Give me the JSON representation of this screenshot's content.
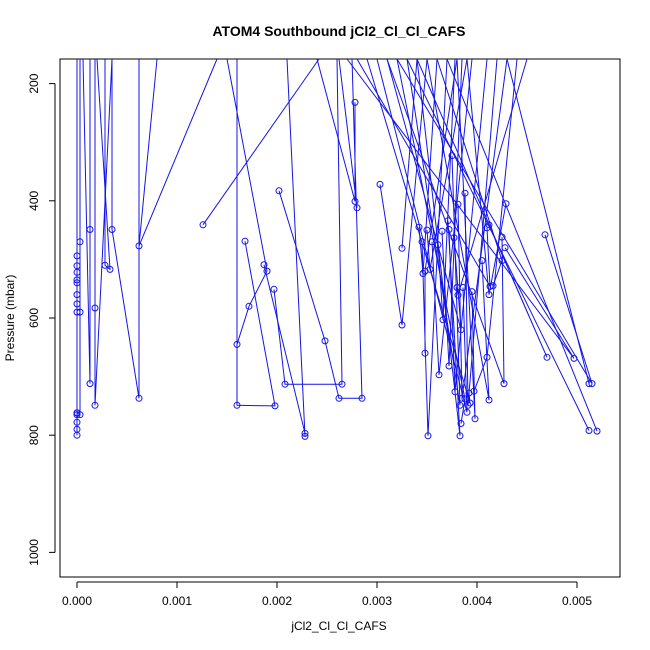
{
  "chart_data": {
    "type": "line",
    "title": "ATOM4 Southbound jCl2_Cl_Cl_CAFS",
    "xlabel": "jCl2_Cl_Cl_CAFS",
    "ylabel": "Pressure (mbar)",
    "xlim": [
      -0.00017,
      0.00543
    ],
    "ylim": [
      1042,
      158
    ],
    "y_reversed": true,
    "grid": false,
    "color": "#1414e6",
    "x_ticks": [
      0.0,
      0.001,
      0.002,
      0.003,
      0.004,
      0.005
    ],
    "x_tick_labels": [
      "0.000",
      "0.001",
      "0.002",
      "0.003",
      "0.004",
      "0.005"
    ],
    "y_ticks": [
      200,
      400,
      600,
      800,
      1000
    ],
    "y_tick_labels": [
      "200",
      "400",
      "600",
      "800",
      "1000"
    ],
    "profiles": [
      [
        [
          0.0,
          158
        ],
        [
          0.0,
          494
        ],
        [
          0.0,
          522
        ],
        [
          0.0,
          540
        ],
        [
          0.0,
          560
        ],
        [
          0.0,
          590
        ],
        [
          0.0,
          762
        ],
        [
          0.0,
          790
        ],
        [
          0.0,
          800
        ]
      ],
      [
        [
          0.0,
          158
        ],
        [
          0.0,
          511
        ],
        [
          0.0,
          535
        ],
        [
          0.0,
          576
        ],
        [
          0.0,
          765
        ],
        [
          0.0,
          778
        ]
      ],
      [
        [
          3e-05,
          158
        ],
        [
          3e-05,
          470
        ],
        [
          3e-05,
          590
        ],
        [
          3e-05,
          765
        ],
        [
          0.0,
          762
        ]
      ],
      [
        [
          0.00013,
          158
        ],
        [
          0.00013,
          449
        ],
        [
          0.00013,
          712
        ],
        [
          6e-05,
          158
        ]
      ],
      [
        [
          0.00018,
          158
        ],
        [
          0.00018,
          583
        ],
        [
          0.00018,
          749
        ],
        [
          0.00035,
          158
        ]
      ],
      [
        [
          0.00028,
          158
        ],
        [
          0.00028,
          510
        ],
        [
          0.00033,
          517
        ],
        [
          0.0002,
          158
        ]
      ],
      [
        [
          0.00035,
          158
        ],
        [
          0.00035,
          449
        ],
        [
          0.00062,
          737
        ],
        [
          0.00062,
          158
        ]
      ],
      [
        [
          0.0014,
          158
        ],
        [
          0.00062,
          477
        ],
        [
          0.0008,
          158
        ]
      ],
      [
        [
          0.00126,
          441
        ],
        [
          0.00242,
          158
        ]
      ],
      [
        [
          0.00168,
          469
        ],
        [
          0.00198,
          750
        ],
        [
          0.0016,
          749
        ],
        [
          0.0016,
          158
        ]
      ],
      [
        [
          0.0016,
          645
        ],
        [
          0.00172,
          580
        ],
        [
          0.0019,
          520
        ],
        [
          0.0015,
          158
        ]
      ],
      [
        [
          0.00187,
          509
        ],
        [
          0.00228,
          797
        ],
        [
          0.00228,
          802
        ],
        [
          0.0021,
          158
        ]
      ],
      [
        [
          0.00197,
          551
        ],
        [
          0.00208,
          713
        ],
        [
          0.00265,
          713
        ],
        [
          0.0026,
          158
        ]
      ],
      [
        [
          0.00202,
          383
        ],
        [
          0.00248,
          639
        ],
        [
          0.00262,
          737
        ],
        [
          0.00285,
          737
        ],
        [
          0.00275,
          158
        ]
      ],
      [
        [
          0.0028,
          412
        ],
        [
          0.00262,
          158
        ]
      ],
      [
        [
          0.00278,
          232
        ],
        [
          0.00278,
          401
        ],
        [
          0.0024,
          158
        ]
      ],
      [
        [
          0.00303,
          372
        ],
        [
          0.00325,
          612
        ],
        [
          0.0035,
          158
        ]
      ],
      [
        [
          0.00325,
          481
        ],
        [
          0.0034,
          158
        ]
      ],
      [
        [
          0.00342,
          445
        ],
        [
          0.00346,
          524
        ],
        [
          0.0036,
          158
        ]
      ],
      [
        [
          0.00345,
          470
        ],
        [
          0.00351,
          801
        ],
        [
          0.0037,
          158
        ]
      ],
      [
        [
          0.00348,
          660
        ],
        [
          0.00348,
          520
        ],
        [
          0.0038,
          158
        ]
      ],
      [
        [
          0.0035,
          450
        ],
        [
          0.00353,
          517
        ],
        [
          0.0039,
          158
        ]
      ],
      [
        [
          0.00355,
          470
        ],
        [
          0.00362,
          697
        ],
        [
          0.00395,
          158
        ]
      ],
      [
        [
          0.00361,
          475
        ],
        [
          0.00366,
          603
        ],
        [
          0.00378,
          158
        ]
      ],
      [
        [
          0.00365,
          452
        ],
        [
          0.00372,
          682
        ],
        [
          0.00385,
          158
        ]
      ],
      [
        [
          0.00371,
          434
        ],
        [
          0.00383,
          801
        ],
        [
          0.0034,
          158
        ]
      ],
      [
        [
          0.00372,
          449
        ],
        [
          0.00378,
          726
        ],
        [
          0.0041,
          158
        ]
      ],
      [
        [
          0.00375,
          323
        ],
        [
          0.00383,
          749
        ],
        [
          0.0033,
          158
        ]
      ],
      [
        [
          0.00377,
          463
        ],
        [
          0.00384,
          620
        ],
        [
          0.0031,
          158
        ]
      ],
      [
        [
          0.0038,
          548
        ],
        [
          0.00381,
          561
        ],
        [
          0.0045,
          158
        ]
      ],
      [
        [
          0.00381,
          406
        ],
        [
          0.00385,
          737
        ],
        [
          0.0043,
          158
        ]
      ],
      [
        [
          0.00384,
          780
        ],
        [
          0.00388,
          738
        ],
        [
          0.0032,
          158
        ]
      ],
      [
        [
          0.00386,
          548
        ],
        [
          0.0039,
          761
        ],
        [
          0.003,
          158
        ]
      ],
      [
        [
          0.00388,
          387
        ],
        [
          0.00391,
          749
        ],
        [
          0.0042,
          158
        ]
      ],
      [
        [
          0.00392,
          728
        ],
        [
          0.00393,
          745
        ],
        [
          0.0029,
          158
        ]
      ],
      [
        [
          0.00395,
          555
        ],
        [
          0.00398,
          772
        ],
        [
          0.0038,
          158
        ]
      ],
      [
        [
          0.00397,
          725
        ],
        [
          0.0041,
          667
        ],
        [
          0.0044,
          158
        ]
      ],
      [
        [
          0.00405,
          502
        ],
        [
          0.00412,
          740
        ],
        [
          0.0035,
          158
        ]
      ],
      [
        [
          0.0041,
          446
        ],
        [
          0.00413,
          546
        ],
        [
          0.0028,
          158
        ]
      ],
      [
        [
          0.00412,
          441
        ],
        [
          0.0047,
          667
        ],
        [
          0.0034,
          158
        ]
      ],
      [
        [
          0.00416,
          545
        ],
        [
          0.00425,
          502
        ],
        [
          0.0036,
          158
        ]
      ],
      [
        [
          0.00425,
          462
        ],
        [
          0.00427,
          712
        ],
        [
          0.0031,
          158
        ]
      ],
      [
        [
          0.00428,
          480
        ],
        [
          0.00497,
          669
        ],
        [
          0.0027,
          158
        ]
      ],
      [
        [
          0.00429,
          405
        ],
        [
          0.00412,
          560
        ],
        [
          0.0039,
          158
        ]
      ],
      [
        [
          0.00468,
          458
        ],
        [
          0.00515,
          712
        ],
        [
          0.0032,
          158
        ]
      ],
      [
        [
          0.00512,
          712
        ],
        [
          0.0043,
          158
        ]
      ],
      [
        [
          0.00512,
          792
        ],
        [
          0.0033,
          158
        ]
      ],
      [
        [
          0.0052,
          793
        ],
        [
          0.0037,
          158
        ]
      ]
    ]
  }
}
